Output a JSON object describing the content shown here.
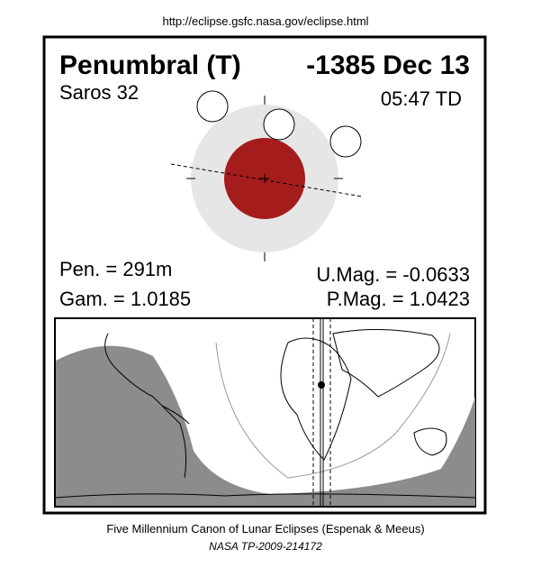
{
  "header": {
    "url": "http://eclipse.gsfc.nasa.gov/eclipse.html"
  },
  "panel": {
    "type": "Penumbral (T)",
    "date": "-1385 Dec 13",
    "saros": "Saros  32",
    "time": "05:47 TD",
    "pen": "Pen. = 291m",
    "gam": "Gam. = 1.0185",
    "umag": "U.Mag. = -0.0633",
    "pmag": "P.Mag. = 1.0423"
  },
  "footer": {
    "line1": "Five Millennium Canon of Lunar Eclipses (Espenak & Meeus)",
    "line2": "NASA TP-2009-214172"
  }
}
